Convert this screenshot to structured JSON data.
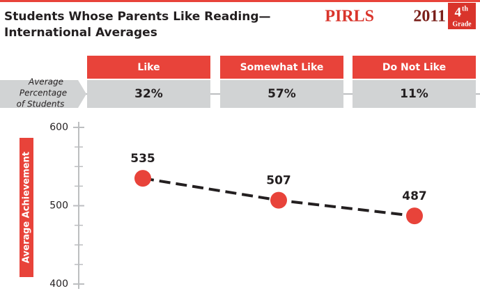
{
  "chart_data": {
    "type": "line",
    "title": [
      "Students Whose Parents Like Reading—",
      "International Averages"
    ],
    "brand": {
      "name": "PIRLS",
      "year": "2011",
      "grade_number": "4",
      "grade_suffix": "th",
      "grade_word": "Grade"
    },
    "categories": [
      "Like",
      "Somewhat Like",
      "Do Not Like"
    ],
    "percent_label": [
      "Average",
      "Percentage",
      "of Students"
    ],
    "percent_values": [
      32,
      57,
      11
    ],
    "percent_value_labels": [
      "32%",
      "57%",
      "11%"
    ],
    "ylabel": "Average Achievement",
    "values": [
      535,
      507,
      487
    ],
    "color": "#e8433a",
    "ylim": [
      400,
      600
    ],
    "yticks": [
      400,
      500,
      600
    ],
    "minor_yticks": [
      425,
      450,
      475,
      525,
      550,
      575
    ]
  }
}
